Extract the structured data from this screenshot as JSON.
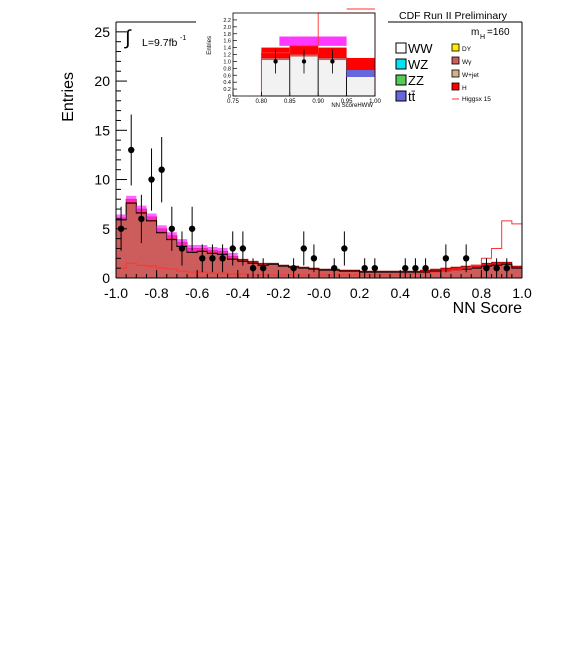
{
  "chart_data": [
    {
      "type": "bar",
      "title": "CDF Run II Preliminary",
      "xlabel": "NN Score",
      "ylabel": "Entries",
      "xlim": [
        -1.0,
        1.0
      ],
      "ylim": [
        0,
        26
      ],
      "xticks": [
        -1.0,
        -0.8,
        -0.6,
        -0.4,
        -0.2,
        0.0,
        0.2,
        0.4,
        0.6,
        0.8,
        1.0
      ],
      "xtick_labels": [
        "-1.0",
        "-0.8",
        "-0.6",
        "-0.4",
        "-0.2",
        "-0.0",
        "0.2",
        "0.4",
        "0.6",
        "0.8",
        "1.0"
      ],
      "yticks": [
        0,
        5,
        10,
        15,
        20,
        25
      ],
      "ytick_labels": [
        "0",
        "5",
        "10",
        "15",
        "20",
        "25"
      ],
      "lumi_label": "L=9.7fb",
      "lumi_superscript": "-1",
      "mass_label": "m",
      "mass_sub": "H",
      "mass_value": "=160",
      "bin_edges": [
        -1.0,
        -0.95,
        -0.9,
        -0.85,
        -0.8,
        -0.75,
        -0.7,
        -0.65,
        -0.6,
        -0.55,
        -0.5,
        -0.45,
        -0.4,
        -0.35,
        -0.3,
        -0.25,
        -0.2,
        -0.15,
        -0.1,
        -0.05,
        0.0,
        0.05,
        0.1,
        0.15,
        0.2,
        0.25,
        0.3,
        0.35,
        0.4,
        0.45,
        0.5,
        0.55,
        0.6,
        0.65,
        0.7,
        0.75,
        0.8,
        0.85,
        0.9,
        0.95,
        1.0
      ],
      "background_total": [
        5.9,
        7.6,
        6.6,
        5.8,
        4.6,
        3.9,
        3.2,
        2.6,
        2.7,
        2.5,
        2.4,
        1.9,
        1.7,
        1.5,
        1.3,
        1.4,
        1.2,
        1.1,
        1.0,
        0.9,
        0.8,
        0.8,
        0.7,
        0.7,
        0.6,
        0.6,
        0.6,
        0.6,
        0.6,
        0.6,
        0.6,
        0.7,
        0.7,
        0.8,
        0.9,
        1.0,
        1.2,
        1.3,
        1.4,
        1.0
      ],
      "signal_stacked_top": [
        6.1,
        8.0,
        7.0,
        6.2,
        5.0,
        4.3,
        3.6,
        3.0,
        3.0,
        2.8,
        2.7,
        2.2,
        1.9,
        1.7,
        1.5,
        1.5,
        1.3,
        1.2,
        1.1,
        1.0,
        0.9,
        0.9,
        0.8,
        0.8,
        0.7,
        0.7,
        0.7,
        0.7,
        0.7,
        0.7,
        0.8,
        0.9,
        1.0,
        1.1,
        1.2,
        1.3,
        1.5,
        1.6,
        1.6,
        1.2
      ],
      "signal_x15": [
        1.0,
        1.5,
        1.3,
        1.2,
        1.0,
        0.9,
        0.7,
        0.6,
        0.6,
        0.5,
        0.5,
        0.4,
        0.4,
        0.3,
        0.3,
        0.3,
        0.3,
        0.3,
        0.3,
        0.3,
        0.3,
        0.3,
        0.3,
        0.3,
        0.3,
        0.3,
        0.3,
        0.3,
        0.4,
        0.4,
        0.5,
        0.6,
        0.7,
        0.8,
        1.0,
        1.3,
        2.0,
        3.0,
        5.8,
        5.5
      ],
      "data_points": {
        "x": [
          -0.975,
          -0.925,
          -0.875,
          -0.825,
          -0.775,
          -0.725,
          -0.675,
          -0.625,
          -0.575,
          -0.525,
          -0.475,
          -0.425,
          -0.375,
          -0.325,
          -0.275,
          -0.125,
          -0.075,
          -0.025,
          0.075,
          0.125,
          0.225,
          0.275,
          0.425,
          0.475,
          0.525,
          0.625,
          0.725,
          0.825,
          0.875,
          0.925
        ],
        "y": [
          5,
          13,
          6,
          10,
          11,
          5,
          3,
          5,
          2,
          2,
          2,
          3,
          3,
          1,
          1,
          1,
          3,
          2,
          1,
          3,
          1,
          1,
          1,
          1,
          1,
          2,
          2,
          1,
          1,
          1
        ]
      },
      "legend": [
        {
          "name": "WW",
          "color": "#ffffff"
        },
        {
          "name": "DY",
          "color": "#ffee00"
        },
        {
          "name": "WZ",
          "color": "#00e5ee"
        },
        {
          "name": "Wγ",
          "color": "#cd5c5c"
        },
        {
          "name": "ZZ",
          "color": "#55cc55"
        },
        {
          "name": "W+jet",
          "color": "#d2b48c"
        },
        {
          "name": "tt̄",
          "color": "#6666dd"
        },
        {
          "name": "H",
          "color": "#ff0000"
        },
        {
          "name": "Higgsx 15",
          "color": "#ff3333"
        }
      ],
      "legend_placement": "top-right"
    },
    {
      "type": "bar",
      "title": "",
      "xlabel": "NN ScoreHWW",
      "ylabel": "Entries",
      "xlim": [
        0.75,
        1.0
      ],
      "ylim": [
        0,
        2.4
      ],
      "xticks": [
        0.75,
        0.8,
        0.85,
        0.9,
        0.95,
        1.0
      ],
      "xtick_labels": [
        "0.75",
        "0.80",
        "0.85",
        "0.90",
        "0.95",
        "1.00"
      ],
      "yticks": [
        0,
        0.2,
        0.4,
        0.6,
        0.8,
        1.0,
        1.2,
        1.4,
        1.6,
        1.8,
        2.0,
        2.2
      ],
      "ytick_labels": [
        "0",
        "0.2",
        "0.4",
        "0.6",
        "0.8",
        "1.0",
        "1.2",
        "1.4",
        "1.6",
        "1.8",
        "2.0",
        "2.2"
      ],
      "bin_edges": [
        0.8,
        0.85,
        0.9,
        0.95,
        1.0
      ],
      "background_total": [
        1.1,
        1.2,
        1.1,
        0.75
      ],
      "signal_stacked_top": [
        1.4,
        1.45,
        1.4,
        1.1
      ],
      "signal_x15": [
        1.25,
        1.45,
        2.4,
        2.4
      ],
      "data_points": {
        "x": [
          0.825,
          0.875,
          0.925
        ],
        "y": [
          1,
          1,
          1
        ]
      }
    }
  ]
}
